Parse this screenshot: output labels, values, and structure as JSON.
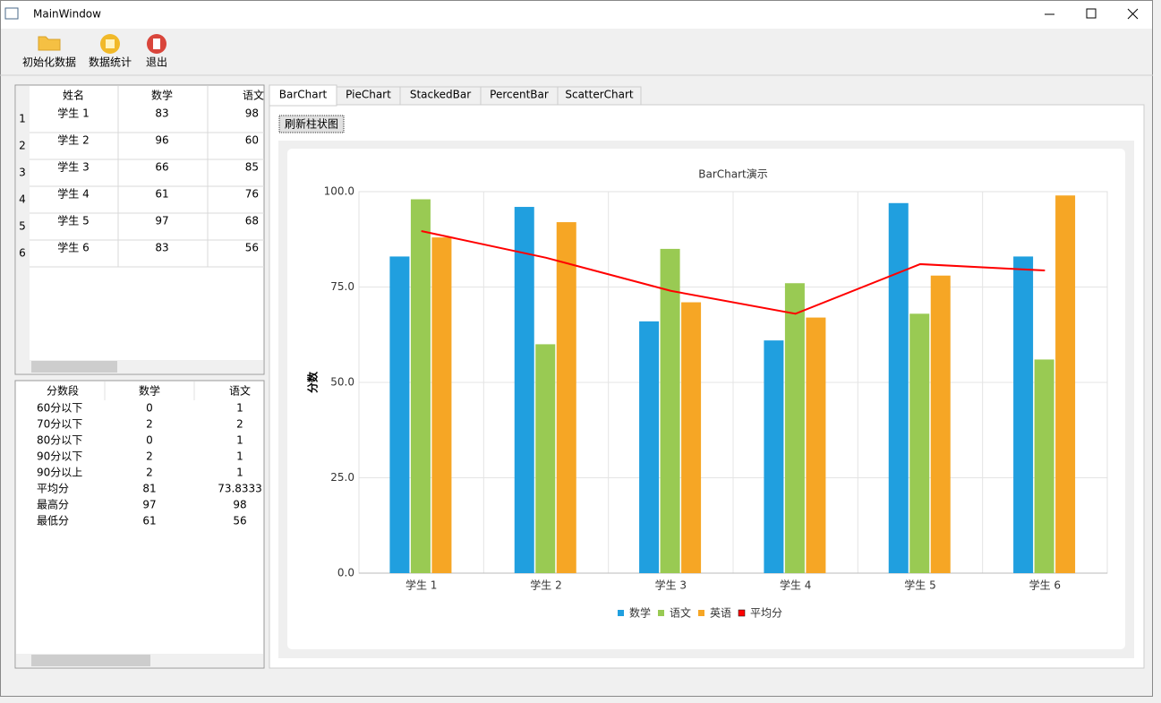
{
  "window": {
    "title": "MainWindow"
  },
  "toolbar": [
    "初始化数据",
    "数据统计",
    "退出"
  ],
  "score_table": {
    "headers": [
      "姓名",
      "数学",
      "语文"
    ],
    "row_headers": [
      "1",
      "2",
      "3",
      "4",
      "5",
      "6"
    ],
    "rows": [
      [
        "学生 1",
        83,
        98
      ],
      [
        "学生 2",
        96,
        60
      ],
      [
        "学生 3",
        66,
        85
      ],
      [
        "学生 4",
        61,
        76
      ],
      [
        "学生 5",
        97,
        68
      ],
      [
        "学生 6",
        83,
        56
      ]
    ]
  },
  "stats_table": {
    "headers": [
      "分数段",
      "数学",
      "语文"
    ],
    "rows": [
      [
        "60分以下",
        0,
        1
      ],
      [
        "70分以下",
        2,
        2
      ],
      [
        "80分以下",
        0,
        1
      ],
      [
        "90分以下",
        2,
        1
      ],
      [
        "90分以上",
        2,
        1
      ],
      [
        "平均分",
        81,
        73.8333
      ],
      [
        "最高分",
        97,
        98
      ],
      [
        "最低分",
        61,
        56
      ]
    ]
  },
  "tabs": [
    "BarChart",
    "PieChart",
    "StackedBar",
    "PercentBar",
    "ScatterChart"
  ],
  "refresh_button": "刷新柱状图",
  "chart_data": {
    "type": "bar",
    "title": "BarChart演示",
    "y_label": "分数",
    "categories": [
      "学生 1",
      "学生 2",
      "学生 3",
      "学生 4",
      "学生 5",
      "学生 6"
    ],
    "series": [
      {
        "name": "数学",
        "color": "#209fdf",
        "values": [
          83,
          96,
          66,
          61,
          97,
          83
        ]
      },
      {
        "name": "语文",
        "color": "#99ca53",
        "values": [
          98,
          60,
          85,
          76,
          68,
          56
        ]
      },
      {
        "name": "英语",
        "color": "#f6a625",
        "values": [
          88,
          92,
          71,
          67,
          78,
          99
        ]
      },
      {
        "name": "平均分",
        "color": "#ff0000",
        "type": "line",
        "values": [
          89.67,
          82.67,
          74,
          68,
          81,
          79.33
        ]
      }
    ],
    "ylim": [
      0,
      100
    ],
    "yticks": [
      {
        "value": 0,
        "label": "0.0"
      },
      {
        "value": 25,
        "label": "25.0"
      },
      {
        "value": 50,
        "label": "50.0"
      },
      {
        "value": 75,
        "label": "75.0"
      },
      {
        "value": 100,
        "label": "100.0"
      }
    ],
    "grid": true,
    "legend": "bottom"
  }
}
